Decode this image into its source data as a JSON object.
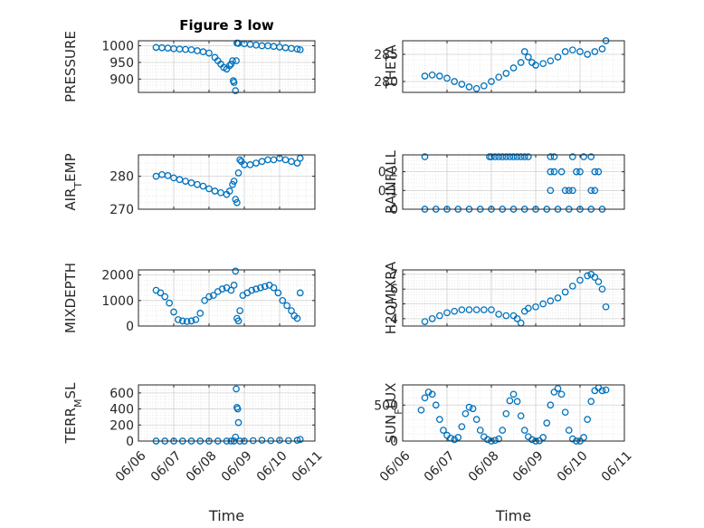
{
  "chart_data": [
    {
      "type": "scatter",
      "title": "Figure 3 low",
      "ylabel": "PRESSURE",
      "xlim": [
        "06/06",
        "06/11"
      ],
      "ylim": [
        860,
        1015
      ],
      "yticks": [
        900,
        950,
        1000
      ],
      "yticklabels": [
        "900",
        "950",
        "1000"
      ],
      "xticklabels": [],
      "xlabel": "",
      "grid": true,
      "color": "#0072BD",
      "series": [
        {
          "x": [
            "06/06 12:00",
            "06/06 16:00",
            "06/06 20:00",
            "06/07 00:00",
            "06/07 04:00",
            "06/07 08:00",
            "06/07 12:00",
            "06/07 16:00",
            "06/07 20:00",
            "06/08 00:00",
            "06/08 04:00",
            "06/08 06:00",
            "06/08 08:00",
            "06/08 10:00",
            "06/08 12:00",
            "06/08 14:00",
            "06/08 15:00",
            "06/08 16:00",
            "06/08 16:30",
            "06/08 17:00",
            "06/08 18:00",
            "06/08 18:30",
            "06/08 19:00",
            "06/08 19:30",
            "06/08 20:00",
            "06/09 00:00",
            "06/09 04:00",
            "06/09 08:00",
            "06/09 12:00",
            "06/09 16:00",
            "06/09 20:00",
            "06/10 00:00",
            "06/10 04:00",
            "06/10 08:00",
            "06/10 12:00",
            "06/10 14:00"
          ],
          "y": [
            995,
            994,
            993,
            991,
            990,
            989,
            988,
            985,
            982,
            978,
            965,
            955,
            945,
            935,
            930,
            940,
            945,
            955,
            895,
            890,
            865,
            955,
            1008,
            1008,
            1007,
            1006,
            1004,
            1002,
            1000,
            1000,
            998,
            996,
            994,
            992,
            990,
            988
          ]
        }
      ]
    },
    {
      "type": "scatter",
      "title": "",
      "ylabel": "THETA",
      "xlim": [
        "06/06",
        "06/11"
      ],
      "ylim": [
        278,
        287.5
      ],
      "yticks": [
        280,
        285
      ],
      "yticklabels": [
        "280",
        "285"
      ],
      "xticklabels": [],
      "xlabel": "",
      "grid": true,
      "color": "#0072BD",
      "series": [
        {
          "x": [
            "06/06 12:00",
            "06/06 16:00",
            "06/06 20:00",
            "06/07 00:00",
            "06/07 04:00",
            "06/07 08:00",
            "06/07 12:00",
            "06/07 16:00",
            "06/07 20:00",
            "06/08 00:00",
            "06/08 04:00",
            "06/08 08:00",
            "06/08 12:00",
            "06/08 16:00",
            "06/08 18:00",
            "06/08 20:00",
            "06/08 22:00",
            "06/09 00:00",
            "06/09 04:00",
            "06/09 08:00",
            "06/09 12:00",
            "06/09 16:00",
            "06/09 20:00",
            "06/10 00:00",
            "06/10 04:00",
            "06/10 08:00",
            "06/10 12:00",
            "06/10 14:00"
          ],
          "y": [
            281.0,
            281.2,
            281.0,
            280.6,
            280.0,
            279.5,
            279.0,
            278.7,
            279.2,
            280.0,
            280.8,
            281.5,
            282.5,
            283.5,
            285.5,
            284.5,
            283.5,
            283.0,
            283.3,
            283.8,
            284.5,
            285.5,
            285.8,
            285.5,
            285.0,
            285.5,
            286.0,
            287.5
          ]
        }
      ]
    },
    {
      "type": "scatter",
      "title": "",
      "ylabel": "AIR_TEMP",
      "xlim": [
        "06/06",
        "06/11"
      ],
      "ylim": [
        270,
        286.5
      ],
      "yticks": [
        270,
        280
      ],
      "yticklabels": [
        "270",
        "280"
      ],
      "xticklabels": [],
      "xlabel": "",
      "grid": true,
      "color": "#0072BD",
      "series": [
        {
          "x": [
            "06/06 12:00",
            "06/06 16:00",
            "06/06 20:00",
            "06/07 00:00",
            "06/07 04:00",
            "06/07 08:00",
            "06/07 12:00",
            "06/07 16:00",
            "06/07 20:00",
            "06/08 00:00",
            "06/08 04:00",
            "06/08 08:00",
            "06/08 12:00",
            "06/08 14:00",
            "06/08 16:00",
            "06/08 17:00",
            "06/08 18:00",
            "06/08 19:00",
            "06/08 20:00",
            "06/08 21:00",
            "06/08 22:00",
            "06/09 00:00",
            "06/09 04:00",
            "06/09 08:00",
            "06/09 12:00",
            "06/09 16:00",
            "06/09 20:00",
            "06/10 00:00",
            "06/10 04:00",
            "06/10 08:00",
            "06/10 12:00",
            "06/10 14:00"
          ],
          "y": [
            280.0,
            280.5,
            280.2,
            279.5,
            279.0,
            278.5,
            278.0,
            277.5,
            277.0,
            276.2,
            275.5,
            275.0,
            274.5,
            275.5,
            277.5,
            278.5,
            273.0,
            272.0,
            281.0,
            285.0,
            284.5,
            283.5,
            283.5,
            284.0,
            284.5,
            285.0,
            285.0,
            285.5,
            285.0,
            284.5,
            284.0,
            285.5
          ]
        }
      ]
    },
    {
      "type": "scatter",
      "title": "",
      "ylabel": "RAINFALL",
      "xlim": [
        "06/06",
        "06/11"
      ],
      "ylim": [
        0,
        0.29
      ],
      "yticks": [
        0,
        0.1,
        0.2
      ],
      "yticklabels": [
        "0",
        "0.1",
        "0.2"
      ],
      "xticklabels": [],
      "xlabel": "",
      "grid": true,
      "color": "#0072BD",
      "series": [
        {
          "x": [
            "06/06 12:00",
            "06/06 18:00",
            "06/07 00:00",
            "06/07 06:00",
            "06/07 12:00",
            "06/07 18:00",
            "06/08 00:00",
            "06/08 06:00",
            "06/08 12:00",
            "06/08 18:00",
            "06/09 00:00",
            "06/09 06:00",
            "06/09 12:00",
            "06/09 18:00",
            "06/10 00:00",
            "06/10 06:00",
            "06/10 12:00",
            "06/06 12:00",
            "06/07 23:00",
            "06/08 00:00",
            "06/08 02:00",
            "06/08 04:00",
            "06/08 06:00",
            "06/08 08:00",
            "06/08 10:00",
            "06/08 12:00",
            "06/08 14:00",
            "06/08 16:00",
            "06/08 18:00",
            "06/08 20:00",
            "06/09 08:00",
            "06/09 10:00",
            "06/09 20:00",
            "06/10 02:00",
            "06/10 06:00",
            "06/09 08:00",
            "06/09 10:00",
            "06/09 14:00",
            "06/09 22:00",
            "06/10 00:00",
            "06/10 08:00",
            "06/10 10:00",
            "06/09 08:00",
            "06/09 16:00",
            "06/09 18:00",
            "06/09 20:00",
            "06/10 06:00",
            "06/10 08:00"
          ],
          "y": [
            0,
            0,
            0,
            0,
            0,
            0,
            0,
            0,
            0,
            0,
            0,
            0,
            0,
            0,
            0,
            0,
            0,
            0.28,
            0.28,
            0.28,
            0.28,
            0.28,
            0.28,
            0.28,
            0.28,
            0.28,
            0.28,
            0.28,
            0.28,
            0.28,
            0.28,
            0.28,
            0.28,
            0.28,
            0.28,
            0.2,
            0.2,
            0.2,
            0.2,
            0.2,
            0.2,
            0.2,
            0.1,
            0.1,
            0.1,
            0.1,
            0.1,
            0.1
          ]
        }
      ]
    },
    {
      "type": "scatter",
      "title": "",
      "ylabel": "MIXDEPTH",
      "xlim": [
        "06/06",
        "06/11"
      ],
      "ylim": [
        0,
        2200
      ],
      "yticks": [
        0,
        1000,
        2000
      ],
      "yticklabels": [
        "0",
        "1000",
        "2000"
      ],
      "xticklabels": [],
      "xlabel": "",
      "grid": true,
      "color": "#0072BD",
      "series": [
        {
          "x": [
            "06/06 12:00",
            "06/06 15:00",
            "06/06 18:00",
            "06/06 21:00",
            "06/07 00:00",
            "06/07 03:00",
            "06/07 06:00",
            "06/07 09:00",
            "06/07 12:00",
            "06/07 15:00",
            "06/07 18:00",
            "06/07 21:00",
            "06/08 00:00",
            "06/08 03:00",
            "06/08 06:00",
            "06/08 09:00",
            "06/08 12:00",
            "06/08 15:00",
            "06/08 17:00",
            "06/08 18:00",
            "06/08 19:00",
            "06/08 20:00",
            "06/08 21:00",
            "06/08 23:00",
            "06/09 02:00",
            "06/09 05:00",
            "06/09 08:00",
            "06/09 11:00",
            "06/09 14:00",
            "06/09 17:00",
            "06/09 20:00",
            "06/09 23:00",
            "06/10 02:00",
            "06/10 05:00",
            "06/10 08:00",
            "06/10 10:00",
            "06/10 12:00",
            "06/10 14:00"
          ],
          "y": [
            1400,
            1300,
            1150,
            900,
            550,
            250,
            200,
            180,
            200,
            250,
            500,
            1000,
            1150,
            1200,
            1350,
            1450,
            1500,
            1400,
            1600,
            2150,
            300,
            200,
            600,
            1200,
            1300,
            1400,
            1450,
            1500,
            1550,
            1600,
            1500,
            1300,
            1000,
            800,
            600,
            400,
            300,
            1300
          ]
        }
      ]
    },
    {
      "type": "scatter",
      "title": "",
      "ylabel": "H2OMIXRA",
      "xlim": [
        "06/06",
        "06/11"
      ],
      "ylim": [
        3.5,
        7.3
      ],
      "yticks": [
        4,
        5,
        6,
        7
      ],
      "yticklabels": [
        "4",
        "5",
        "6",
        "7"
      ],
      "xticklabels": [],
      "xlabel": "",
      "grid": true,
      "color": "#0072BD",
      "series": [
        {
          "x": [
            "06/06 12:00",
            "06/06 16:00",
            "06/06 20:00",
            "06/07 00:00",
            "06/07 04:00",
            "06/07 08:00",
            "06/07 12:00",
            "06/07 16:00",
            "06/07 20:00",
            "06/08 00:00",
            "06/08 04:00",
            "06/08 08:00",
            "06/08 12:00",
            "06/08 14:00",
            "06/08 16:00",
            "06/08 18:00",
            "06/08 20:00",
            "06/09 00:00",
            "06/09 04:00",
            "06/09 08:00",
            "06/09 12:00",
            "06/09 16:00",
            "06/09 20:00",
            "06/10 00:00",
            "06/10 04:00",
            "06/10 06:00",
            "06/10 08:00",
            "06/10 10:00",
            "06/10 12:00",
            "06/10 14:00"
          ],
          "y": [
            3.8,
            4.0,
            4.2,
            4.4,
            4.5,
            4.6,
            4.6,
            4.6,
            4.6,
            4.6,
            4.3,
            4.2,
            4.2,
            4.0,
            3.7,
            4.5,
            4.7,
            4.8,
            5.0,
            5.2,
            5.4,
            5.8,
            6.2,
            6.6,
            6.9,
            7.0,
            6.8,
            6.5,
            6.0,
            4.8
          ]
        }
      ]
    },
    {
      "type": "scatter",
      "title": "",
      "ylabel": "TERR_MSL",
      "xlim": [
        "06/06",
        "06/11"
      ],
      "ylim": [
        0,
        700
      ],
      "yticks": [
        0,
        200,
        400,
        600
      ],
      "yticklabels": [
        "0",
        "200",
        "400",
        "600"
      ],
      "xticks": [
        "06/06",
        "06/07",
        "06/08",
        "06/09",
        "06/10",
        "06/11"
      ],
      "xticklabels": [
        "06/06",
        "06/07",
        "06/08",
        "06/09",
        "06/10",
        "06/11"
      ],
      "xlabel": "Time",
      "grid": true,
      "color": "#0072BD",
      "series": [
        {
          "x": [
            "06/06 12:00",
            "06/06 18:00",
            "06/07 00:00",
            "06/07 06:00",
            "06/07 12:00",
            "06/07 18:00",
            "06/08 00:00",
            "06/08 06:00",
            "06/08 12:00",
            "06/08 15:00",
            "06/08 17:00",
            "06/08 18:00",
            "06/08 18:30",
            "06/08 19:00",
            "06/08 19:30",
            "06/08 20:00",
            "06/08 21:00",
            "06/09 00:00",
            "06/09 06:00",
            "06/09 12:00",
            "06/09 18:00",
            "06/10 00:00",
            "06/10 06:00",
            "06/10 12:00",
            "06/10 14:00"
          ],
          "y": [
            0,
            0,
            0,
            0,
            0,
            0,
            0,
            0,
            0,
            0,
            0,
            50,
            650,
            420,
            400,
            230,
            0,
            0,
            5,
            10,
            5,
            10,
            5,
            10,
            20
          ]
        }
      ]
    },
    {
      "type": "scatter",
      "title": "",
      "ylabel": "SUN_FLUX",
      "xlim": [
        "06/06",
        "06/11"
      ],
      "ylim": [
        0,
        780
      ],
      "yticks": [
        0,
        500
      ],
      "yticklabels": [
        "0",
        "500"
      ],
      "xticks": [
        "06/06",
        "06/07",
        "06/08",
        "06/09",
        "06/10",
        "06/11"
      ],
      "xticklabels": [
        "06/06",
        "06/07",
        "06/08",
        "06/09",
        "06/10",
        "06/11"
      ],
      "xlabel": "Time",
      "grid": true,
      "color": "#0072BD",
      "series": [
        {
          "x": [
            "06/06 10:00",
            "06/06 12:00",
            "06/06 14:00",
            "06/06 16:00",
            "06/06 18:00",
            "06/06 20:00",
            "06/06 22:00",
            "06/07 00:00",
            "06/07 02:00",
            "06/07 04:00",
            "06/07 06:00",
            "06/07 08:00",
            "06/07 10:00",
            "06/07 12:00",
            "06/07 14:00",
            "06/07 16:00",
            "06/07 18:00",
            "06/07 20:00",
            "06/07 22:00",
            "06/08 00:00",
            "06/08 02:00",
            "06/08 04:00",
            "06/08 06:00",
            "06/08 08:00",
            "06/08 10:00",
            "06/08 12:00",
            "06/08 14:00",
            "06/08 16:00",
            "06/08 18:00",
            "06/08 20:00",
            "06/08 22:00",
            "06/09 00:00",
            "06/09 02:00",
            "06/09 04:00",
            "06/09 06:00",
            "06/09 08:00",
            "06/09 10:00",
            "06/09 12:00",
            "06/09 14:00",
            "06/09 16:00",
            "06/09 18:00",
            "06/09 20:00",
            "06/09 22:00",
            "06/10 00:00",
            "06/10 02:00",
            "06/10 04:00",
            "06/10 06:00",
            "06/10 08:00",
            "06/10 10:00",
            "06/10 12:00",
            "06/10 14:00"
          ],
          "y": [
            430,
            600,
            680,
            650,
            500,
            300,
            150,
            80,
            40,
            20,
            50,
            200,
            380,
            470,
            450,
            300,
            150,
            60,
            20,
            0,
            10,
            30,
            150,
            380,
            560,
            650,
            550,
            350,
            150,
            60,
            20,
            0,
            5,
            50,
            250,
            500,
            680,
            730,
            650,
            400,
            150,
            30,
            0,
            0,
            50,
            300,
            550,
            700,
            740,
            700,
            710
          ]
        }
      ]
    }
  ]
}
